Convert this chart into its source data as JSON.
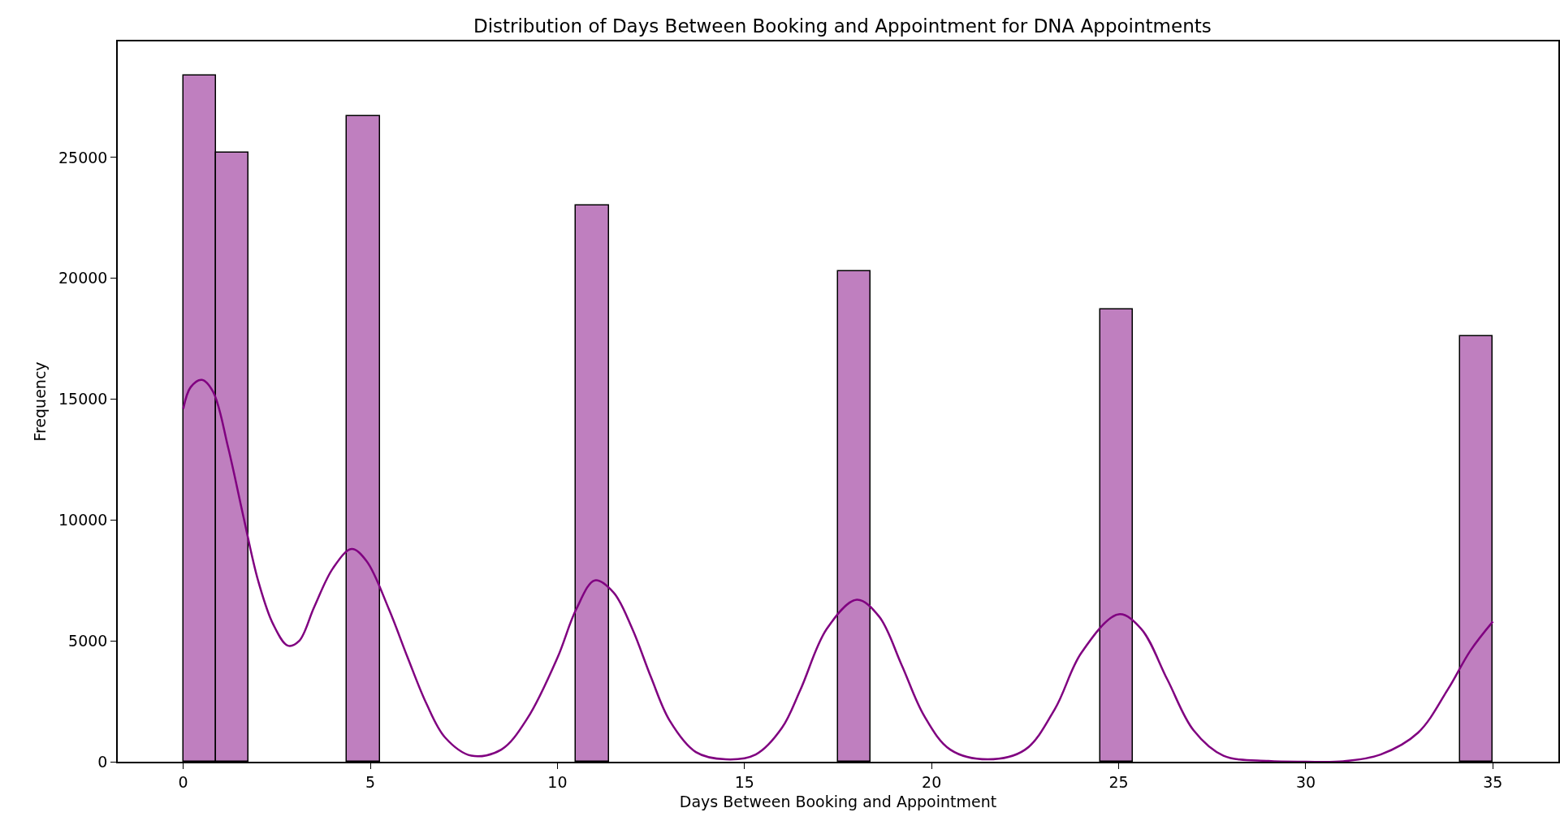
{
  "chart_data": {
    "type": "histogram",
    "title": "Distribution of Days Between Booking and Appointment for DNA Appointments",
    "xlabel": "Days Between Booking and Appointment",
    "ylabel": "Frequency",
    "bins": [
      0,
      0.875,
      1.75,
      2.625,
      3.5,
      4.375,
      5.25,
      6.125,
      7,
      7.875,
      8.75,
      9.625,
      10.5,
      11.375,
      12.25,
      13.125,
      14,
      14.875,
      15.75,
      16.625,
      17.5,
      18.375,
      19.25,
      20.125,
      21,
      21.875,
      22.75,
      23.625,
      24.5,
      25.375,
      26.25,
      27.125,
      28,
      28.875,
      29.75,
      30.625,
      31.5,
      32.375,
      33.25,
      34.125,
      35
    ],
    "values": [
      28400,
      25200,
      0,
      0,
      0,
      26700,
      0,
      0,
      0,
      0,
      0,
      0,
      23000,
      0,
      0,
      0,
      0,
      0,
      0,
      0,
      20300,
      0,
      0,
      0,
      0,
      0,
      0,
      0,
      18700,
      0,
      0,
      0,
      0,
      0,
      0,
      0,
      0,
      0,
      0,
      17600
    ],
    "color": "#bf7fbf",
    "series": [
      {
        "type": "line",
        "color": "#800080",
        "x": [
          0,
          0.2,
          0.5,
          0.8,
          1.2,
          1.6,
          2,
          2.4,
          2.8,
          3.1,
          3.5,
          4,
          4.5,
          4.9,
          5.5,
          6,
          6.5,
          7,
          7.7,
          8.5,
          9.2,
          10,
          10.5,
          11,
          11.5,
          12,
          12.5,
          13,
          13.7,
          14.5,
          15.3,
          16,
          16.5,
          17.2,
          18,
          18.6,
          19.2,
          19.8,
          20.5,
          21.5,
          22.5,
          23.3,
          24,
          25,
          25.6,
          26.3,
          27,
          27.8,
          29,
          30,
          31,
          32,
          33,
          33.8,
          34.4,
          35
        ],
        "values": [
          14600,
          15500,
          15800,
          15300,
          13000,
          10200,
          7500,
          5700,
          4800,
          5000,
          6400,
          8000,
          8800,
          8300,
          6300,
          4300,
          2400,
          1000,
          250,
          500,
          1800,
          4300,
          6300,
          7500,
          7000,
          5500,
          3500,
          1700,
          400,
          100,
          300,
          1400,
          3000,
          5500,
          6700,
          6000,
          4000,
          1900,
          500,
          100,
          500,
          2200,
          4500,
          6100,
          5500,
          3400,
          1300,
          250,
          30,
          0,
          20,
          300,
          1200,
          3000,
          4600,
          5800
        ]
      }
    ],
    "xlim": [
      -1.75,
      36.75
    ],
    "ylim": [
      0,
      29800
    ],
    "xticks": [
      0,
      5,
      10,
      15,
      20,
      25,
      30,
      35
    ],
    "yticks": [
      0,
      5000,
      10000,
      15000,
      20000,
      25000
    ]
  }
}
